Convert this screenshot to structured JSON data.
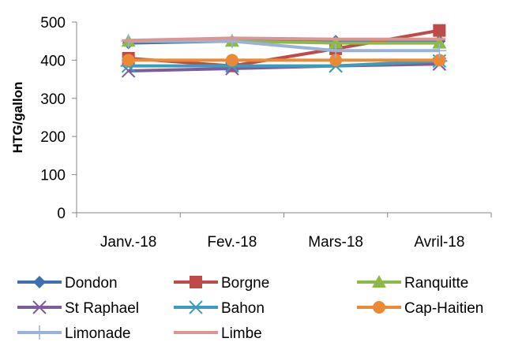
{
  "chart_data": {
    "type": "line",
    "title": "",
    "xlabel": "",
    "ylabel": "HTG/gallon",
    "categories": [
      "Janv.-18",
      "Fev.-18",
      "Mars-18",
      "Avril-18"
    ],
    "ylim": [
      0,
      500
    ],
    "yticks": [
      "0",
      "100",
      "200",
      "300",
      "400",
      "500"
    ],
    "grid": false,
    "legend_position": "bottom",
    "series": [
      {
        "name": "Dondon",
        "color": "#3F6FB0",
        "marker": "diamond",
        "values": [
          445,
          450,
          450,
          450
        ]
      },
      {
        "name": "Borgne",
        "color": "#BE4B48",
        "marker": "square",
        "values": [
          405,
          385,
          430,
          478
        ]
      },
      {
        "name": "Ranquitte",
        "color": "#8DB84A",
        "marker": "triangle",
        "values": [
          450,
          450,
          445,
          445
        ]
      },
      {
        "name": "St Raphael",
        "color": "#7D5C9E",
        "marker": "x",
        "values": [
          372,
          378,
          385,
          390
        ]
      },
      {
        "name": "Bahon",
        "color": "#3A9DBB",
        "marker": "star",
        "values": [
          385,
          385,
          385,
          398
        ]
      },
      {
        "name": "Cap-Haitien",
        "color": "#EB8A35",
        "marker": "circle",
        "values": [
          400,
          400,
          400,
          400
        ]
      },
      {
        "name": "Limonade",
        "color": "#98B2DA",
        "marker": "plus",
        "values": [
          450,
          450,
          425,
          425
        ]
      },
      {
        "name": "Limbe",
        "color": "#DC9592",
        "marker": "dash",
        "values": [
          452,
          458,
          455,
          455
        ]
      }
    ]
  }
}
